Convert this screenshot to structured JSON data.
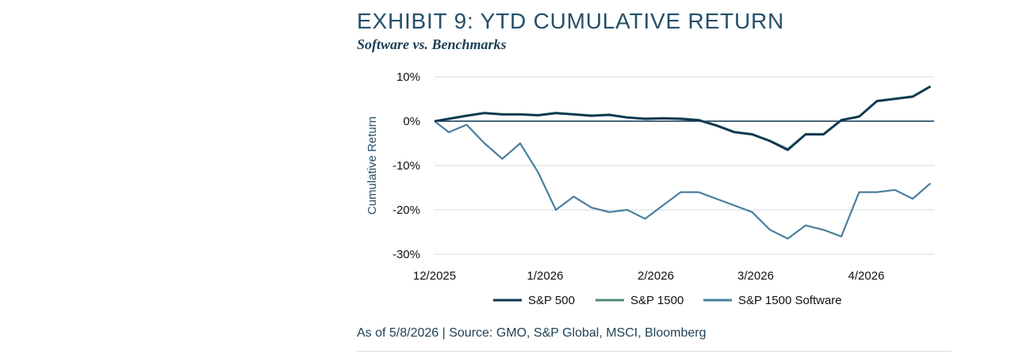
{
  "header": {
    "title": "EXHIBIT 9: YTD CUMULATIVE RETURN",
    "subtitle": "Software vs. Benchmarks"
  },
  "footer": {
    "source": "As of 5/8/2026 | Source: GMO, S&P Global, MSCI, Bloomberg"
  },
  "chart_data": {
    "type": "line",
    "title": "EXHIBIT 9: YTD CUMULATIVE RETURN",
    "subtitle": "Software vs. Benchmarks",
    "xlabel": "",
    "ylabel": "Cumulative Return",
    "x_tick_labels": [
      "12/2025",
      "1/2026",
      "2/2026",
      "3/2026",
      "4/2026"
    ],
    "y_tick_labels": [
      "10%",
      "0%",
      "-10%",
      "-20%",
      "-30%"
    ],
    "y_ticks": [
      10,
      0,
      -10,
      -20,
      -30
    ],
    "ylim": [
      -30,
      10
    ],
    "grid": "horizontal",
    "legend_position": "bottom",
    "x": [
      "2025-12-01",
      "2025-12-05",
      "2025-12-10",
      "2025-12-15",
      "2025-12-20",
      "2025-12-25",
      "2025-12-30",
      "2026-01-04",
      "2026-01-09",
      "2026-01-14",
      "2026-01-19",
      "2026-01-24",
      "2026-01-29",
      "2026-02-03",
      "2026-02-08",
      "2026-02-13",
      "2026-02-18",
      "2026-02-23",
      "2026-02-28",
      "2026-03-05",
      "2026-03-10",
      "2026-03-15",
      "2026-03-20",
      "2026-03-25",
      "2026-03-30",
      "2026-04-04",
      "2026-04-09",
      "2026-04-14",
      "2026-04-19"
    ],
    "series": [
      {
        "name": "S&P 500",
        "color": "#0d3350",
        "values": [
          0,
          0.5,
          1.2,
          1.8,
          1.5,
          1.5,
          1.3,
          1.8,
          1.5,
          1.2,
          1.4,
          0.8,
          0.5,
          0.6,
          0.5,
          0.2,
          -1,
          -2.5,
          -3,
          -4.5,
          -6.5,
          -3,
          -3,
          0.2,
          1,
          4.5,
          5,
          5.5,
          7.8
        ]
      },
      {
        "name": "S&P 1500",
        "color": "#4e8a6c",
        "values": [
          0,
          0.6,
          1.3,
          1.9,
          1.6,
          1.6,
          1.4,
          1.9,
          1.6,
          1.3,
          1.5,
          0.9,
          0.6,
          0.7,
          0.6,
          0.3,
          -0.9,
          -2.4,
          -2.9,
          -4.4,
          -6.3,
          -2.9,
          -2.9,
          0.3,
          1.1,
          4.6,
          5.1,
          5.6,
          7.9
        ]
      },
      {
        "name": "S&P 1500 Software",
        "color": "#4a7f9f",
        "values": [
          0,
          -2.5,
          -0.8,
          -5,
          -8.5,
          -5,
          -11.5,
          -20,
          -17,
          -19.5,
          -20.5,
          -20,
          -22,
          -19,
          -16,
          -16,
          -17.5,
          -19,
          -20.5,
          -24.5,
          -26.5,
          -23.5,
          -24.5,
          -26,
          -16,
          -16,
          -15.5,
          -17.5,
          -14
        ]
      }
    ]
  }
}
